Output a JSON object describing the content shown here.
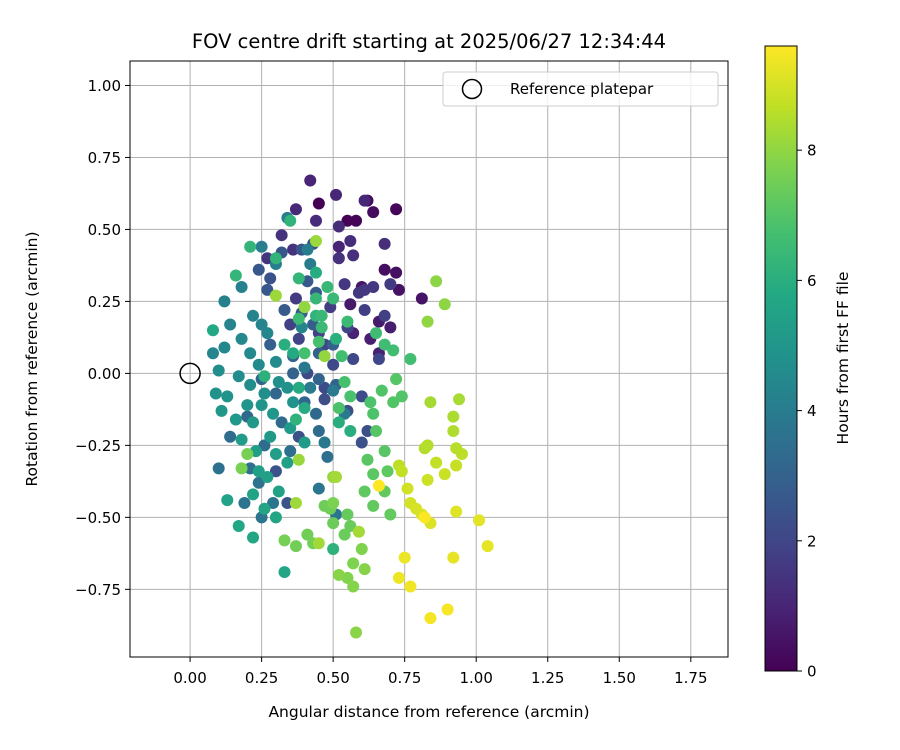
{
  "chart_data": {
    "type": "scatter",
    "title": "FOV centre drift starting at 2025/06/27 12:34:44",
    "xlabel": "Angular distance from reference (arcmin)",
    "ylabel": "Rotation from reference (arcmin)",
    "xlim": [
      -0.21,
      1.88
    ],
    "ylim": [
      -0.985,
      1.085
    ],
    "xticks": [
      0.0,
      0.25,
      0.5,
      0.75,
      1.0,
      1.25,
      1.5,
      1.75
    ],
    "xtick_labels": [
      "0.00",
      "0.25",
      "0.50",
      "0.75",
      "1.00",
      "1.25",
      "1.50",
      "1.75"
    ],
    "yticks": [
      -0.75,
      -0.5,
      -0.25,
      0.0,
      0.25,
      0.5,
      0.75,
      1.0
    ],
    "ytick_labels": [
      "−0.75",
      "−0.50",
      "−0.25",
      "0.00",
      "0.25",
      "0.50",
      "0.75",
      "1.00"
    ],
    "grid": true,
    "legend": {
      "position": "top-right",
      "entries": [
        "Reference platepar"
      ]
    },
    "reference_point": {
      "x": 0.0,
      "y": 0.0,
      "label": "Reference platepar"
    },
    "colorbar": {
      "label": "Hours from first FF file",
      "colormap": "viridis",
      "range": [
        0,
        9.6
      ],
      "ticks": [
        0,
        2,
        4,
        6,
        8
      ],
      "tick_labels": [
        "0",
        "2",
        "4",
        "6",
        "8"
      ]
    },
    "series": [
      {
        "hours_range": [
          0.0,
          1.0
        ],
        "points": [
          [
            0.45,
            0.59
          ],
          [
            0.55,
            0.53
          ],
          [
            0.58,
            0.53
          ],
          [
            0.72,
            0.57
          ],
          [
            0.62,
            0.6
          ],
          [
            0.64,
            0.56
          ],
          [
            0.68,
            0.36
          ],
          [
            0.72,
            0.35
          ],
          [
            0.73,
            0.29
          ],
          [
            0.81,
            0.26
          ],
          [
            0.6,
            0.3
          ],
          [
            0.56,
            0.24
          ],
          [
            0.66,
            0.18
          ],
          [
            0.7,
            0.16
          ],
          [
            0.63,
            0.12
          ],
          [
            0.66,
            0.07
          ],
          [
            0.57,
            0.14
          ],
          [
            0.52,
            0.44
          ]
        ]
      },
      {
        "hours_range": [
          1.0,
          2.5
        ],
        "points": [
          [
            0.42,
            0.67
          ],
          [
            0.51,
            0.62
          ],
          [
            0.61,
            0.6
          ],
          [
            0.37,
            0.57
          ],
          [
            0.44,
            0.53
          ],
          [
            0.52,
            0.51
          ],
          [
            0.56,
            0.46
          ],
          [
            0.68,
            0.45
          ],
          [
            0.57,
            0.41
          ],
          [
            0.52,
            0.4
          ],
          [
            0.32,
            0.48
          ],
          [
            0.36,
            0.43
          ],
          [
            0.27,
            0.4
          ],
          [
            0.54,
            0.31
          ],
          [
            0.59,
            0.28
          ],
          [
            0.61,
            0.29
          ],
          [
            0.64,
            0.3
          ],
          [
            0.7,
            0.31
          ],
          [
            0.37,
            0.26
          ],
          [
            0.49,
            0.23
          ],
          [
            0.61,
            0.22
          ],
          [
            0.68,
            0.2
          ],
          [
            0.35,
            0.17
          ],
          [
            0.45,
            0.14
          ],
          [
            0.55,
            0.16
          ],
          [
            0.38,
            0.12
          ],
          [
            0.47,
            0.1
          ],
          [
            0.66,
            0.05
          ],
          [
            0.5,
            0.03
          ],
          [
            0.57,
            0.05
          ],
          [
            0.41,
            0.0
          ],
          [
            0.47,
            -0.05
          ],
          [
            0.6,
            -0.08
          ],
          [
            0.55,
            -0.13
          ],
          [
            0.47,
            -0.09
          ],
          [
            0.62,
            -0.2
          ],
          [
            0.38,
            -0.22
          ],
          [
            0.6,
            -0.24
          ],
          [
            0.3,
            -0.34
          ],
          [
            0.34,
            -0.45
          ],
          [
            0.28,
            0.33
          ]
        ]
      },
      {
        "hours_range": [
          2.5,
          4.0
        ],
        "points": [
          [
            0.43,
            0.45
          ],
          [
            0.39,
            0.43
          ],
          [
            0.32,
            0.42
          ],
          [
            0.24,
            0.36
          ],
          [
            0.27,
            0.29
          ],
          [
            0.41,
            0.32
          ],
          [
            0.44,
            0.28
          ],
          [
            0.33,
            0.22
          ],
          [
            0.39,
            0.21
          ],
          [
            0.43,
            0.17
          ],
          [
            0.28,
            0.1
          ],
          [
            0.36,
            0.06
          ],
          [
            0.45,
            0.07
          ],
          [
            0.5,
            0.1
          ],
          [
            0.36,
            0.0
          ],
          [
            0.45,
            -0.02
          ],
          [
            0.51,
            -0.04
          ],
          [
            0.25,
            -0.02
          ],
          [
            0.3,
            -0.07
          ],
          [
            0.4,
            -0.1
          ],
          [
            0.44,
            -0.14
          ],
          [
            0.2,
            -0.15
          ],
          [
            0.32,
            -0.17
          ],
          [
            0.45,
            -0.2
          ],
          [
            0.14,
            -0.22
          ],
          [
            0.26,
            -0.25
          ],
          [
            0.35,
            -0.27
          ],
          [
            0.48,
            -0.29
          ],
          [
            0.21,
            -0.33
          ],
          [
            0.1,
            -0.33
          ],
          [
            0.24,
            -0.38
          ],
          [
            0.19,
            -0.45
          ],
          [
            0.29,
            -0.45
          ],
          [
            0.45,
            -0.4
          ],
          [
            0.25,
            -0.5
          ],
          [
            0.51,
            -0.49
          ],
          [
            0.4,
            0.02
          ],
          [
            0.47,
            -0.24
          ],
          [
            0.5,
            -0.06
          ],
          [
            0.54,
            -0.14
          ],
          [
            0.42,
            0.38
          ],
          [
            0.42,
            -0.05
          ]
        ]
      },
      {
        "hours_range": [
          4.0,
          6.2
        ],
        "points": [
          [
            0.34,
            0.54
          ],
          [
            0.25,
            0.44
          ],
          [
            0.41,
            0.43
          ],
          [
            0.3,
            0.38
          ],
          [
            0.18,
            0.3
          ],
          [
            0.12,
            0.25
          ],
          [
            0.22,
            0.2
          ],
          [
            0.14,
            0.17
          ],
          [
            0.25,
            0.17
          ],
          [
            0.39,
            0.16
          ],
          [
            0.27,
            0.14
          ],
          [
            0.08,
            0.07
          ],
          [
            0.12,
            0.09
          ],
          [
            0.18,
            0.12
          ],
          [
            0.21,
            0.07
          ],
          [
            0.24,
            0.03
          ],
          [
            0.3,
            0.04
          ],
          [
            0.1,
            0.01
          ],
          [
            0.17,
            -0.01
          ],
          [
            0.21,
            -0.04
          ],
          [
            0.26,
            -0.07
          ],
          [
            0.31,
            -0.03
          ],
          [
            0.34,
            -0.05
          ],
          [
            0.36,
            -0.1
          ],
          [
            0.09,
            -0.07
          ],
          [
            0.13,
            -0.08
          ],
          [
            0.2,
            -0.11
          ],
          [
            0.25,
            -0.11
          ],
          [
            0.29,
            -0.14
          ],
          [
            0.11,
            -0.13
          ],
          [
            0.16,
            -0.16
          ],
          [
            0.22,
            -0.17
          ],
          [
            0.28,
            -0.22
          ],
          [
            0.35,
            -0.19
          ],
          [
            0.4,
            -0.24
          ],
          [
            0.18,
            -0.23
          ],
          [
            0.23,
            -0.27
          ],
          [
            0.3,
            -0.28
          ],
          [
            0.34,
            -0.31
          ],
          [
            0.24,
            -0.34
          ],
          [
            0.27,
            -0.36
          ],
          [
            0.31,
            -0.41
          ],
          [
            0.13,
            -0.44
          ],
          [
            0.22,
            -0.42
          ],
          [
            0.26,
            -0.47
          ],
          [
            0.3,
            -0.5
          ],
          [
            0.17,
            -0.53
          ],
          [
            0.33,
            -0.69
          ],
          [
            0.22,
            -0.57
          ],
          [
            0.08,
            0.15
          ],
          [
            0.36,
            0.07
          ],
          [
            0.38,
            -0.05
          ],
          [
            0.4,
            -0.12
          ],
          [
            0.44,
            0.35
          ],
          [
            0.52,
            -0.17
          ],
          [
            0.56,
            -0.2
          ],
          [
            0.33,
            0.1
          ],
          [
            0.51,
            0.12
          ],
          [
            0.26,
            -0.01
          ],
          [
            0.5,
            -0.61
          ],
          [
            0.37,
            -0.16
          ],
          [
            0.44,
            0.2
          ]
        ]
      },
      {
        "hours_range": [
          6.2,
          8.3
        ],
        "points": [
          [
            0.35,
            0.53
          ],
          [
            0.3,
            0.4
          ],
          [
            0.21,
            0.44
          ],
          [
            0.16,
            0.34
          ],
          [
            0.38,
            0.33
          ],
          [
            0.44,
            0.26
          ],
          [
            0.48,
            0.3
          ],
          [
            0.46,
            0.2
          ],
          [
            0.5,
            0.26
          ],
          [
            0.46,
            0.16
          ],
          [
            0.55,
            0.18
          ],
          [
            0.38,
            0.19
          ],
          [
            0.65,
            0.14
          ],
          [
            0.68,
            0.1
          ],
          [
            0.71,
            0.08
          ],
          [
            0.77,
            0.05
          ],
          [
            0.53,
            0.06
          ],
          [
            0.4,
            0.07
          ],
          [
            0.45,
            0.11
          ],
          [
            0.54,
            -0.03
          ],
          [
            0.56,
            -0.08
          ],
          [
            0.52,
            -0.12
          ],
          [
            0.63,
            -0.1
          ],
          [
            0.64,
            -0.14
          ],
          [
            0.67,
            -0.06
          ],
          [
            0.71,
            -0.1
          ],
          [
            0.74,
            -0.08
          ],
          [
            0.72,
            -0.02
          ],
          [
            0.65,
            -0.2
          ],
          [
            0.68,
            -0.27
          ],
          [
            0.62,
            -0.3
          ],
          [
            0.64,
            -0.35
          ],
          [
            0.69,
            -0.34
          ],
          [
            0.61,
            -0.41
          ],
          [
            0.64,
            -0.46
          ],
          [
            0.68,
            -0.41
          ],
          [
            0.7,
            -0.49
          ],
          [
            0.55,
            -0.49
          ],
          [
            0.56,
            -0.53
          ],
          [
            0.54,
            -0.56
          ],
          [
            0.5,
            -0.52
          ],
          [
            0.47,
            -0.46
          ],
          [
            0.49,
            -0.47
          ],
          [
            0.41,
            -0.56
          ],
          [
            0.37,
            -0.6
          ],
          [
            0.43,
            -0.59
          ],
          [
            0.33,
            -0.58
          ],
          [
            0.2,
            -0.28
          ],
          [
            0.18,
            -0.33
          ],
          [
            0.5,
            -0.45
          ],
          [
            0.57,
            -0.66
          ],
          [
            0.6,
            -0.61
          ],
          [
            0.55,
            -0.71
          ],
          [
            0.57,
            -0.74
          ],
          [
            0.61,
            -0.68
          ],
          [
            0.52,
            -0.7
          ],
          [
            0.58,
            -0.9
          ],
          [
            0.86,
            0.32
          ],
          [
            0.89,
            0.24
          ],
          [
            0.83,
            0.18
          ],
          [
            0.4,
            0.23
          ],
          [
            0.47,
            0.06
          ],
          [
            0.5,
            -0.36
          ],
          [
            0.38,
            -0.3
          ],
          [
            0.44,
            0.46
          ],
          [
            0.3,
            0.27
          ],
          [
            0.37,
            -0.45
          ],
          [
            0.45,
            -0.59
          ],
          [
            0.51,
            -0.36
          ],
          [
            0.59,
            -0.55
          ]
        ]
      },
      {
        "hours_range": [
          8.3,
          9.6
        ],
        "points": [
          [
            0.84,
            -0.1
          ],
          [
            0.94,
            -0.09
          ],
          [
            0.92,
            -0.15
          ],
          [
            0.92,
            -0.2
          ],
          [
            0.82,
            -0.26
          ],
          [
            0.83,
            -0.25
          ],
          [
            0.93,
            -0.26
          ],
          [
            0.95,
            -0.28
          ],
          [
            0.73,
            -0.32
          ],
          [
            0.74,
            -0.34
          ],
          [
            0.86,
            -0.31
          ],
          [
            0.93,
            -0.32
          ],
          [
            0.89,
            -0.35
          ],
          [
            0.83,
            -0.37
          ],
          [
            0.76,
            -0.4
          ],
          [
            0.77,
            -0.45
          ],
          [
            0.79,
            -0.47
          ],
          [
            0.81,
            -0.49
          ],
          [
            0.84,
            -0.52
          ],
          [
            0.93,
            -0.48
          ],
          [
            1.01,
            -0.51
          ],
          [
            1.04,
            -0.6
          ],
          [
            0.92,
            -0.64
          ],
          [
            0.75,
            -0.64
          ],
          [
            0.73,
            -0.71
          ],
          [
            0.77,
            -0.74
          ],
          [
            0.84,
            -0.85
          ],
          [
            0.9,
            -0.82
          ],
          [
            0.82,
            -0.5
          ],
          [
            0.66,
            -0.39
          ]
        ]
      }
    ]
  }
}
